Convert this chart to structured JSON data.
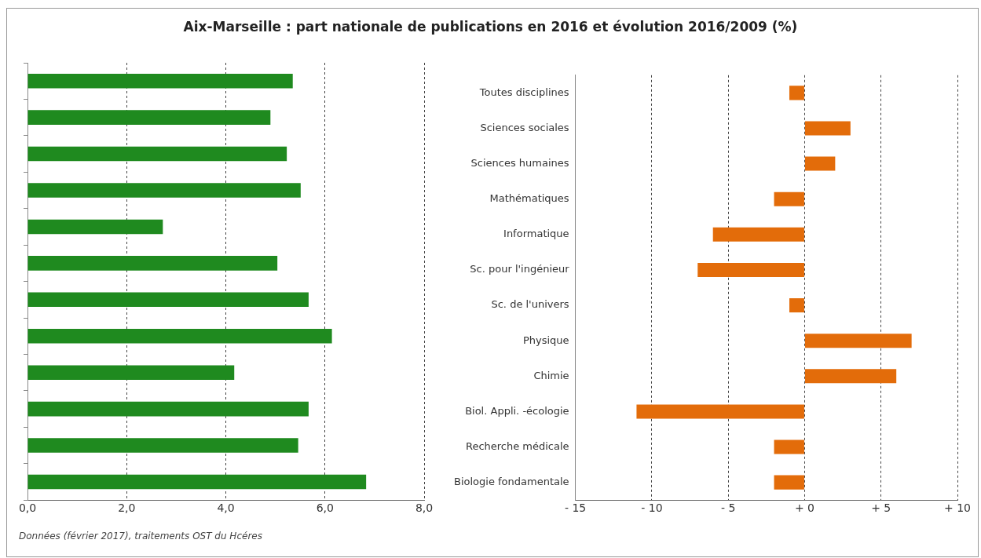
{
  "chart_data": [
    {
      "type": "bar",
      "orientation": "horizontal",
      "title": "Aix-Marseille : part nationale de publications en 2016 et  évolution 2016/2009 (%)",
      "categories": [
        null,
        null,
        null,
        null,
        null,
        null,
        null,
        null,
        null,
        null,
        null,
        null
      ],
      "values": [
        5.35,
        4.9,
        5.23,
        5.51,
        2.73,
        5.04,
        5.67,
        6.14,
        4.17,
        5.67,
        5.46,
        6.83
      ],
      "color": "#1f8a1f",
      "xlim": [
        0,
        8
      ],
      "xticks": [
        {
          "value": 0,
          "label": "0,0"
        },
        {
          "value": 2,
          "label": "2,0"
        },
        {
          "value": 4,
          "label": "4,0"
        },
        {
          "value": 6,
          "label": "6,0"
        },
        {
          "value": 8,
          "label": "8,0"
        }
      ],
      "grid": "x",
      "tick_labels": "x",
      "legend": false,
      "annotations": [
        "Données (février 2017), traitements OST du Hcéres"
      ]
    },
    {
      "type": "bar",
      "orientation": "horizontal",
      "categories": [
        "Toutes disciplines",
        "Sciences sociales",
        "Sciences humaines",
        "Mathématiques",
        "Informatique",
        "Sc. pour l'ingénieur",
        "Sc. de l'univers",
        "Physique",
        "Chimie",
        "Biol. Appli. -écologie",
        "Recherche médicale",
        "Biologie fondamentale"
      ],
      "values": [
        -1,
        3,
        2,
        -2,
        -6,
        -7,
        -1,
        7,
        6,
        -11,
        -2,
        -2
      ],
      "color": "#e36c0a",
      "xlim": [
        -15,
        10
      ],
      "xticks": [
        {
          "value": -15,
          "label": "- 15"
        },
        {
          "value": -10,
          "label": "- 10"
        },
        {
          "value": -5,
          "label": "- 5"
        },
        {
          "value": 0,
          "label": "+ 0"
        },
        {
          "value": 5,
          "label": "+ 5"
        },
        {
          "value": 10,
          "label": "+ 10"
        }
      ],
      "grid": "x",
      "legend": false
    }
  ]
}
